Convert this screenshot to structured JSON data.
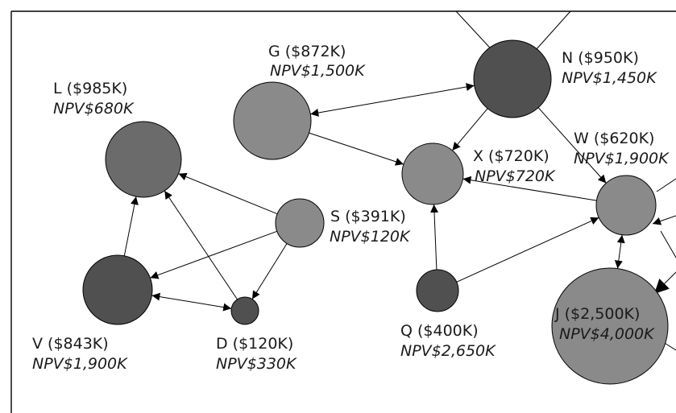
{
  "colors": {
    "dark": "#505050",
    "mid": "#6b6b6b",
    "light": "#8a8a8a",
    "edge": "#000000"
  },
  "nodes": [
    {
      "id": "G",
      "name": "G ($872K)",
      "npv": "NPV$1,500K",
      "shade": "light"
    },
    {
      "id": "N",
      "name": "N ($950K)",
      "npv": "NPV$1,450K",
      "shade": "dark"
    },
    {
      "id": "L",
      "name": "L ($985K)",
      "npv": "NPV$680K",
      "shade": "mid"
    },
    {
      "id": "X",
      "name": "X ($720K)",
      "npv": "NPV$720K",
      "shade": "light"
    },
    {
      "id": "W",
      "name": "W ($620K)",
      "npv": "NPV$1,900K",
      "shade": "light"
    },
    {
      "id": "S",
      "name": "S ($391K)",
      "npv": "NPV$120K",
      "shade": "light"
    },
    {
      "id": "V",
      "name": "V ($843K)",
      "npv": "NPV$1,900K",
      "shade": "dark"
    },
    {
      "id": "D",
      "name": "D ($120K)",
      "npv": "NPV$330K",
      "shade": "dark"
    },
    {
      "id": "Q",
      "name": "Q ($400K)",
      "npv": "NPV$2,650K",
      "shade": "dark"
    },
    {
      "id": "J",
      "name": "J ($2,500K)",
      "npv": "NPV$4,000K",
      "shade": "light"
    }
  ],
  "edges": [
    {
      "from": "N",
      "to": "G",
      "arrow": "both"
    },
    {
      "from": "G",
      "to": "X",
      "arrow": "end"
    },
    {
      "from": "N",
      "to": "X",
      "arrow": "end"
    },
    {
      "from": "N",
      "to": "W",
      "arrow": "end"
    },
    {
      "from": "W",
      "to": "X",
      "arrow": "end"
    },
    {
      "from": "Q",
      "to": "X",
      "arrow": "end"
    },
    {
      "from": "Q",
      "to": "W",
      "arrow": "end"
    },
    {
      "from": "W",
      "to": "J",
      "arrow": "both"
    },
    {
      "from": "S",
      "to": "L",
      "arrow": "end"
    },
    {
      "from": "S",
      "to": "V",
      "arrow": "end"
    },
    {
      "from": "S",
      "to": "D",
      "arrow": "end"
    },
    {
      "from": "V",
      "to": "L",
      "arrow": "end"
    },
    {
      "from": "D",
      "to": "L",
      "arrow": "end"
    },
    {
      "from": "V",
      "to": "D",
      "arrow": "both"
    }
  ]
}
